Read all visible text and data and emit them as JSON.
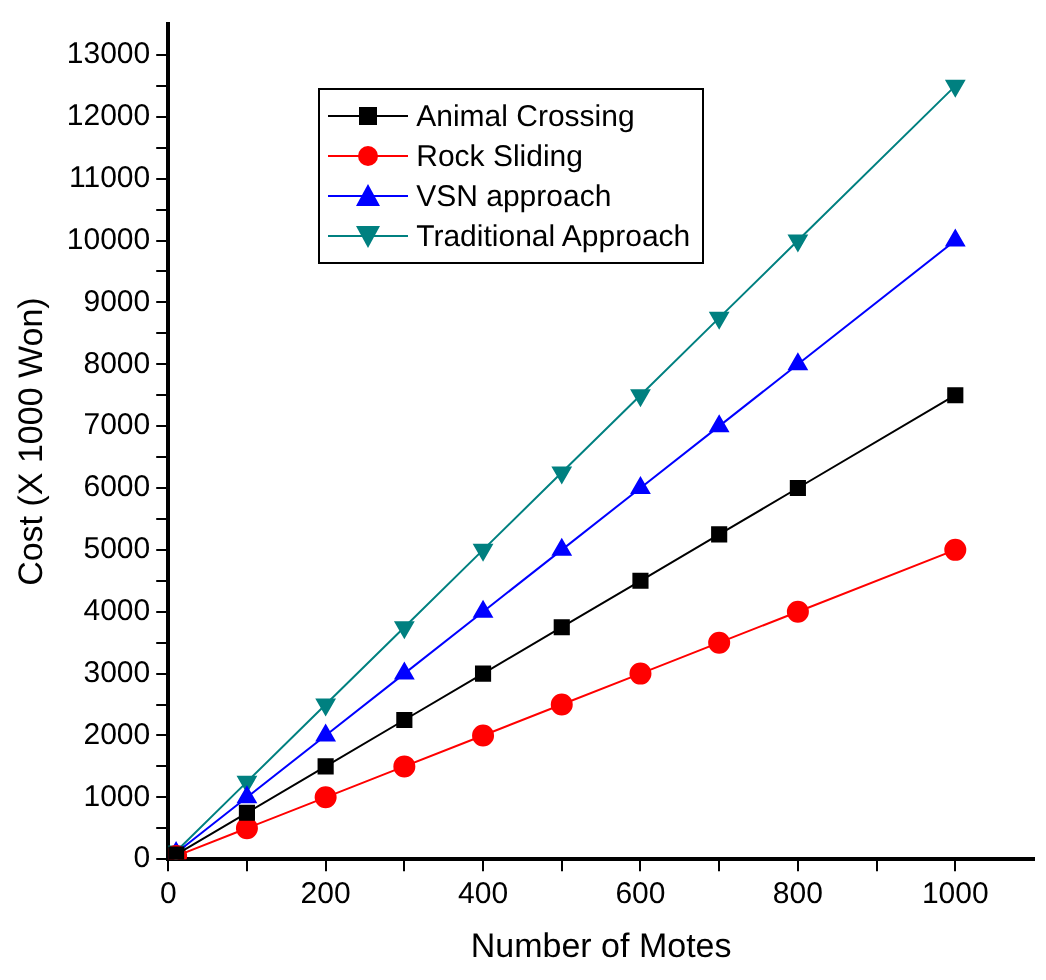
{
  "chart_data": {
    "type": "line",
    "xlabel": "Number of Motes",
    "ylabel": "Cost (X 1000 Won)",
    "x": [
      10,
      100,
      200,
      300,
      400,
      500,
      600,
      700,
      800,
      1000
    ],
    "series": [
      {
        "name": "Animal Crossing",
        "color": "#000000",
        "marker": "square",
        "values": [
          75,
          750,
          1500,
          2250,
          3000,
          3750,
          4500,
          5250,
          6000,
          7500
        ]
      },
      {
        "name": "Rock Sliding",
        "color": "#ff0000",
        "marker": "circle",
        "values": [
          50,
          500,
          1000,
          1500,
          2000,
          2500,
          3000,
          3500,
          4000,
          5000
        ]
      },
      {
        "name": "VSN approach",
        "color": "#0000ff",
        "marker": "triangle",
        "values": [
          100,
          1000,
          2000,
          3000,
          4000,
          5000,
          6000,
          7000,
          8000,
          10000
        ]
      },
      {
        "name": "Traditional Approach",
        "color": "#008080",
        "marker": "triangle-down",
        "values": [
          125,
          1250,
          2500,
          3750,
          5000,
          6250,
          7500,
          8750,
          10000,
          12500
        ]
      }
    ],
    "xlim": [
      0,
      1100
    ],
    "xticks": [
      0,
      {
        "value": 100,
        "label": null
      },
      200,
      {
        "value": 300,
        "label": null
      },
      400,
      {
        "value": 500,
        "label": null
      },
      600,
      {
        "value": 700,
        "label": null
      },
      800,
      {
        "value": 900,
        "label": null
      },
      1000
    ],
    "ylim": [
      0,
      13500
    ],
    "yticks": [
      0,
      {
        "value": 500,
        "label": null
      },
      1000,
      {
        "value": 1500,
        "label": null
      },
      2000,
      {
        "value": 2500,
        "label": null
      },
      3000,
      {
        "value": 3500,
        "label": null
      },
      4000,
      {
        "value": 4500,
        "label": null
      },
      5000,
      {
        "value": 5500,
        "label": null
      },
      6000,
      {
        "value": 6500,
        "label": null
      },
      7000,
      {
        "value": 7500,
        "label": null
      },
      8000,
      {
        "value": 8500,
        "label": null
      },
      9000,
      {
        "value": 9500,
        "label": null
      },
      10000,
      {
        "value": 10500,
        "label": null
      },
      11000,
      {
        "value": 11500,
        "label": null
      },
      12000,
      {
        "value": 12500,
        "label": null
      },
      13000
    ],
    "grid": false,
    "legend": "top left",
    "line_style": "solid"
  }
}
